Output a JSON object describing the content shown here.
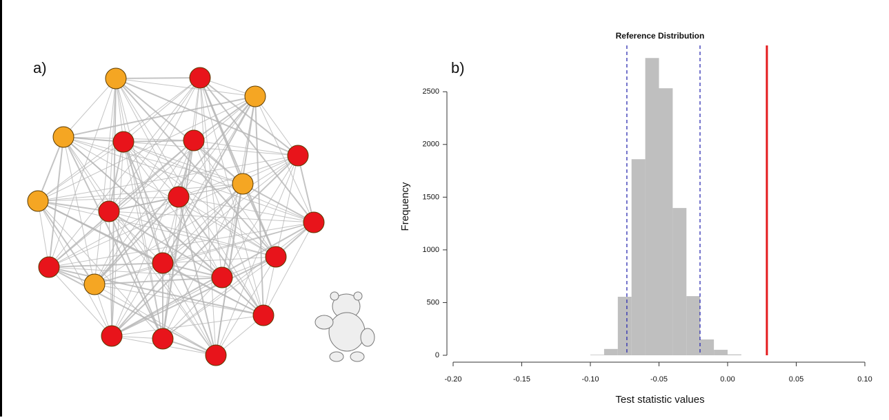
{
  "panel_labels": {
    "a": "a)",
    "b": "b)"
  },
  "chart_data": {
    "type": "histogram",
    "title": "Reference Distribution",
    "xlabel": "Test statistic values",
    "ylabel": "Frequency",
    "bins": [
      -0.1,
      -0.09,
      -0.08,
      -0.07,
      -0.06,
      -0.05,
      -0.04,
      -0.03,
      -0.02,
      -0.01,
      0.0,
      0.01
    ],
    "counts": [
      5,
      60,
      555,
      1860,
      2820,
      2533,
      1397,
      561,
      150,
      52,
      8
    ],
    "color": "#bfbfbf",
    "xlim": [
      -0.2,
      0.1
    ],
    "xticks": [
      {
        "value": -0.2,
        "label": "-0.20"
      },
      {
        "value": -0.15,
        "label": "-0.15"
      },
      {
        "value": -0.1,
        "label": "-0.10"
      },
      {
        "value": -0.05,
        "label": "-0.05"
      },
      {
        "value": 0,
        "label": "0.00"
      },
      {
        "value": 0.05,
        "label": "0.05"
      },
      {
        "value": 0.1,
        "label": "0.10"
      }
    ],
    "ylim": [
      0,
      2900
    ],
    "yticks": [
      0,
      500,
      1000,
      1500,
      2000,
      2500
    ],
    "reference_lines": [
      {
        "value": -0.0734,
        "color": "#2b2bb0",
        "style": "dashed"
      },
      {
        "value": -0.0201,
        "color": "#2b2bb0",
        "style": "dashed"
      },
      {
        "value": 0.0286,
        "color": "#e41a1c",
        "style": "solid"
      }
    ]
  }
}
